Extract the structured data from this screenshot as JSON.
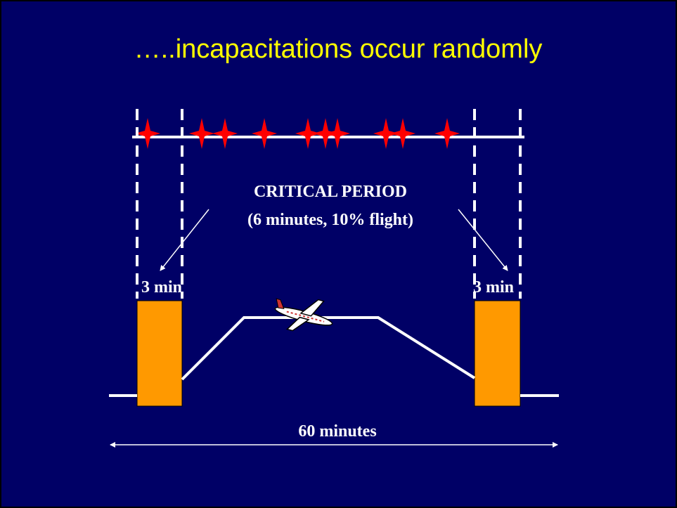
{
  "title": "…..incapacitations occur randomly",
  "labels": {
    "critical_period": "CRITICAL PERIOD",
    "critical_detail": "(6 minutes, 10% flight)",
    "left_duration": "3 min",
    "right_duration": "3 min",
    "total_duration": "60 minutes"
  }
}
